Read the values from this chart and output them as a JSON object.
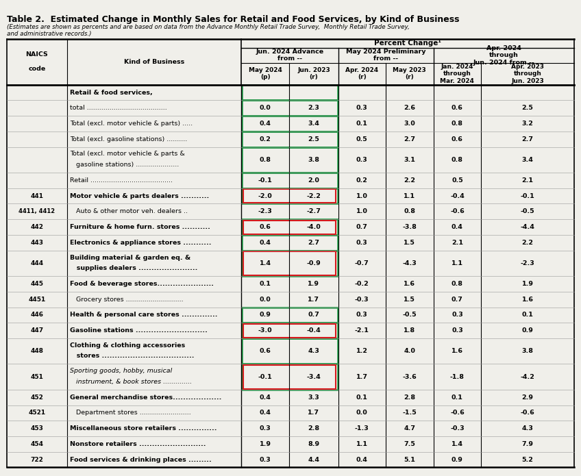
{
  "title": "Table 2.  Estimated Change in Monthly Sales for Retail and Food Services, by Kind of Business",
  "subtitle1": "(Estimates are shown as percents and are based on data from the Advance Monthly Retail Trade Survey,  Monthly Retail Trade Survey,",
  "subtitle2": "and administrative records.)",
  "rows": [
    {
      "naics": "",
      "kind": "Retail & food services,",
      "kind2": "",
      "v1": "",
      "v2": "",
      "v3": "",
      "v4": "",
      "v5": "",
      "v6": "",
      "green_box": true,
      "red_box": false,
      "bold": true,
      "italic": false
    },
    {
      "naics": "",
      "kind": "total .......................................",
      "kind2": "",
      "v1": "0.0",
      "v2": "2.3",
      "v3": "0.3",
      "v4": "2.6",
      "v5": "0.6",
      "v6": "2.5",
      "green_box": true,
      "red_box": false,
      "bold": false,
      "italic": false
    },
    {
      "naics": "",
      "kind": "Total (excl. motor vehicle & parts) .....",
      "kind2": "",
      "v1": "0.4",
      "v2": "3.4",
      "v3": "0.1",
      "v4": "3.0",
      "v5": "0.8",
      "v6": "3.2",
      "green_box": true,
      "red_box": false,
      "bold": false,
      "italic": false
    },
    {
      "naics": "",
      "kind": "Total (excl. gasoline stations) ..........",
      "kind2": "",
      "v1": "0.2",
      "v2": "2.5",
      "v3": "0.5",
      "v4": "2.7",
      "v5": "0.6",
      "v6": "2.7",
      "green_box": true,
      "red_box": false,
      "bold": false,
      "italic": false
    },
    {
      "naics": "",
      "kind": "Total (excl. motor vehicle & parts &",
      "kind2": "   gasoline stations) .....................",
      "v1": "0.8",
      "v2": "3.8",
      "v3": "0.3",
      "v4": "3.1",
      "v5": "0.8",
      "v6": "3.4",
      "green_box": true,
      "red_box": false,
      "bold": false,
      "italic": false
    },
    {
      "naics": "",
      "kind": "Retail ........................................",
      "kind2": "",
      "v1": "-0.1",
      "v2": "2.0",
      "v3": "0.2",
      "v4": "2.2",
      "v5": "0.5",
      "v6": "2.1",
      "green_box": true,
      "red_box": false,
      "bold": false,
      "italic": false
    },
    {
      "naics": "441",
      "kind": "Motor vehicle & parts dealers ...........",
      "kind2": "",
      "v1": "-2.0",
      "v2": "-2.2",
      "v3": "1.0",
      "v4": "1.1",
      "v5": "-0.4",
      "v6": "-0.1",
      "green_box": true,
      "red_box": true,
      "bold": true,
      "italic": false
    },
    {
      "naics": "4411, 4412",
      "kind": "   Auto & other motor veh. dealers ..",
      "kind2": "",
      "v1": "-2.3",
      "v2": "-2.7",
      "v3": "1.0",
      "v4": "0.8",
      "v5": "-0.6",
      "v6": "-0.5",
      "green_box": false,
      "red_box": false,
      "bold": false,
      "italic": false
    },
    {
      "naics": "442",
      "kind": "Furniture & home furn. stores ...........",
      "kind2": "",
      "v1": "0.6",
      "v2": "-4.0",
      "v3": "0.7",
      "v4": "-3.8",
      "v5": "0.4",
      "v6": "-4.4",
      "green_box": true,
      "red_box": true,
      "bold": true,
      "italic": false
    },
    {
      "naics": "443",
      "kind": "Electronics & appliance stores ...........",
      "kind2": "",
      "v1": "0.4",
      "v2": "2.7",
      "v3": "0.3",
      "v4": "1.5",
      "v5": "2.1",
      "v6": "2.2",
      "green_box": true,
      "red_box": false,
      "bold": true,
      "italic": false
    },
    {
      "naics": "444",
      "kind": "Building material & garden eq. &",
      "kind2": "   supplies dealers .......................",
      "v1": "1.4",
      "v2": "-0.9",
      "v3": "-0.7",
      "v4": "-4.3",
      "v5": "1.1",
      "v6": "-2.3",
      "green_box": true,
      "red_box": true,
      "bold": true,
      "italic": false
    },
    {
      "naics": "445",
      "kind": "Food & beverage stores......................",
      "kind2": "",
      "v1": "0.1",
      "v2": "1.9",
      "v3": "-0.2",
      "v4": "1.6",
      "v5": "0.8",
      "v6": "1.9",
      "green_box": false,
      "red_box": false,
      "bold": true,
      "italic": false
    },
    {
      "naics": "4451",
      "kind": "   Grocery stores ............................",
      "kind2": "",
      "v1": "0.0",
      "v2": "1.7",
      "v3": "-0.3",
      "v4": "1.5",
      "v5": "0.7",
      "v6": "1.6",
      "green_box": false,
      "red_box": false,
      "bold": false,
      "italic": false
    },
    {
      "naics": "446",
      "kind": "Health & personal care stores ..............",
      "kind2": "",
      "v1": "0.9",
      "v2": "0.7",
      "v3": "0.3",
      "v4": "-0.5",
      "v5": "0.3",
      "v6": "0.1",
      "green_box": true,
      "red_box": false,
      "bold": true,
      "italic": false
    },
    {
      "naics": "447",
      "kind": "Gasoline stations ............................",
      "kind2": "",
      "v1": "-3.0",
      "v2": "-0.4",
      "v3": "-2.1",
      "v4": "1.8",
      "v5": "0.3",
      "v6": "0.9",
      "green_box": true,
      "red_box": true,
      "bold": true,
      "italic": false
    },
    {
      "naics": "448",
      "kind": "Clothing & clothing accessories",
      "kind2": "   stores ....................................",
      "v1": "0.6",
      "v2": "4.3",
      "v3": "1.2",
      "v4": "4.0",
      "v5": "1.6",
      "v6": "3.8",
      "green_box": true,
      "red_box": false,
      "bold": true,
      "italic": false
    },
    {
      "naics": "451",
      "kind": "Sporting goods, hobby, musical",
      "kind2": "   instrument, & book stores ..............",
      "v1": "-0.1",
      "v2": "-3.4",
      "v3": "1.7",
      "v4": "-3.6",
      "v5": "-1.8",
      "v6": "-4.2",
      "green_box": true,
      "red_box": true,
      "bold": false,
      "italic": true
    },
    {
      "naics": "452",
      "kind": "General merchandise stores...................",
      "kind2": "",
      "v1": "0.4",
      "v2": "3.3",
      "v3": "0.1",
      "v4": "2.8",
      "v5": "0.1",
      "v6": "2.9",
      "green_box": false,
      "red_box": false,
      "bold": true,
      "italic": false
    },
    {
      "naics": "4521",
      "kind": "   Department stores .........................",
      "kind2": "",
      "v1": "0.4",
      "v2": "1.7",
      "v3": "0.0",
      "v4": "-1.5",
      "v5": "-0.6",
      "v6": "-0.6",
      "green_box": false,
      "red_box": false,
      "bold": false,
      "italic": false
    },
    {
      "naics": "453",
      "kind": "Miscellaneous store retailers ...............",
      "kind2": "",
      "v1": "0.3",
      "v2": "2.8",
      "v3": "-1.3",
      "v4": "4.7",
      "v5": "-0.3",
      "v6": "4.3",
      "green_box": false,
      "red_box": false,
      "bold": true,
      "italic": false
    },
    {
      "naics": "454",
      "kind": "Nonstore retailers ..........................",
      "kind2": "",
      "v1": "1.9",
      "v2": "8.9",
      "v3": "1.1",
      "v4": "7.5",
      "v5": "1.4",
      "v6": "7.9",
      "green_box": false,
      "red_box": false,
      "bold": true,
      "italic": false
    },
    {
      "naics": "722",
      "kind": "Food services & drinking places .........",
      "kind2": "",
      "v1": "0.3",
      "v2": "4.4",
      "v3": "0.4",
      "v4": "5.1",
      "v5": "0.9",
      "v6": "5.2",
      "green_box": false,
      "red_box": false,
      "bold": true,
      "italic": false
    }
  ],
  "bg_color": "#f0efea",
  "green_color": "#1a9641",
  "red_color": "#d7191c"
}
